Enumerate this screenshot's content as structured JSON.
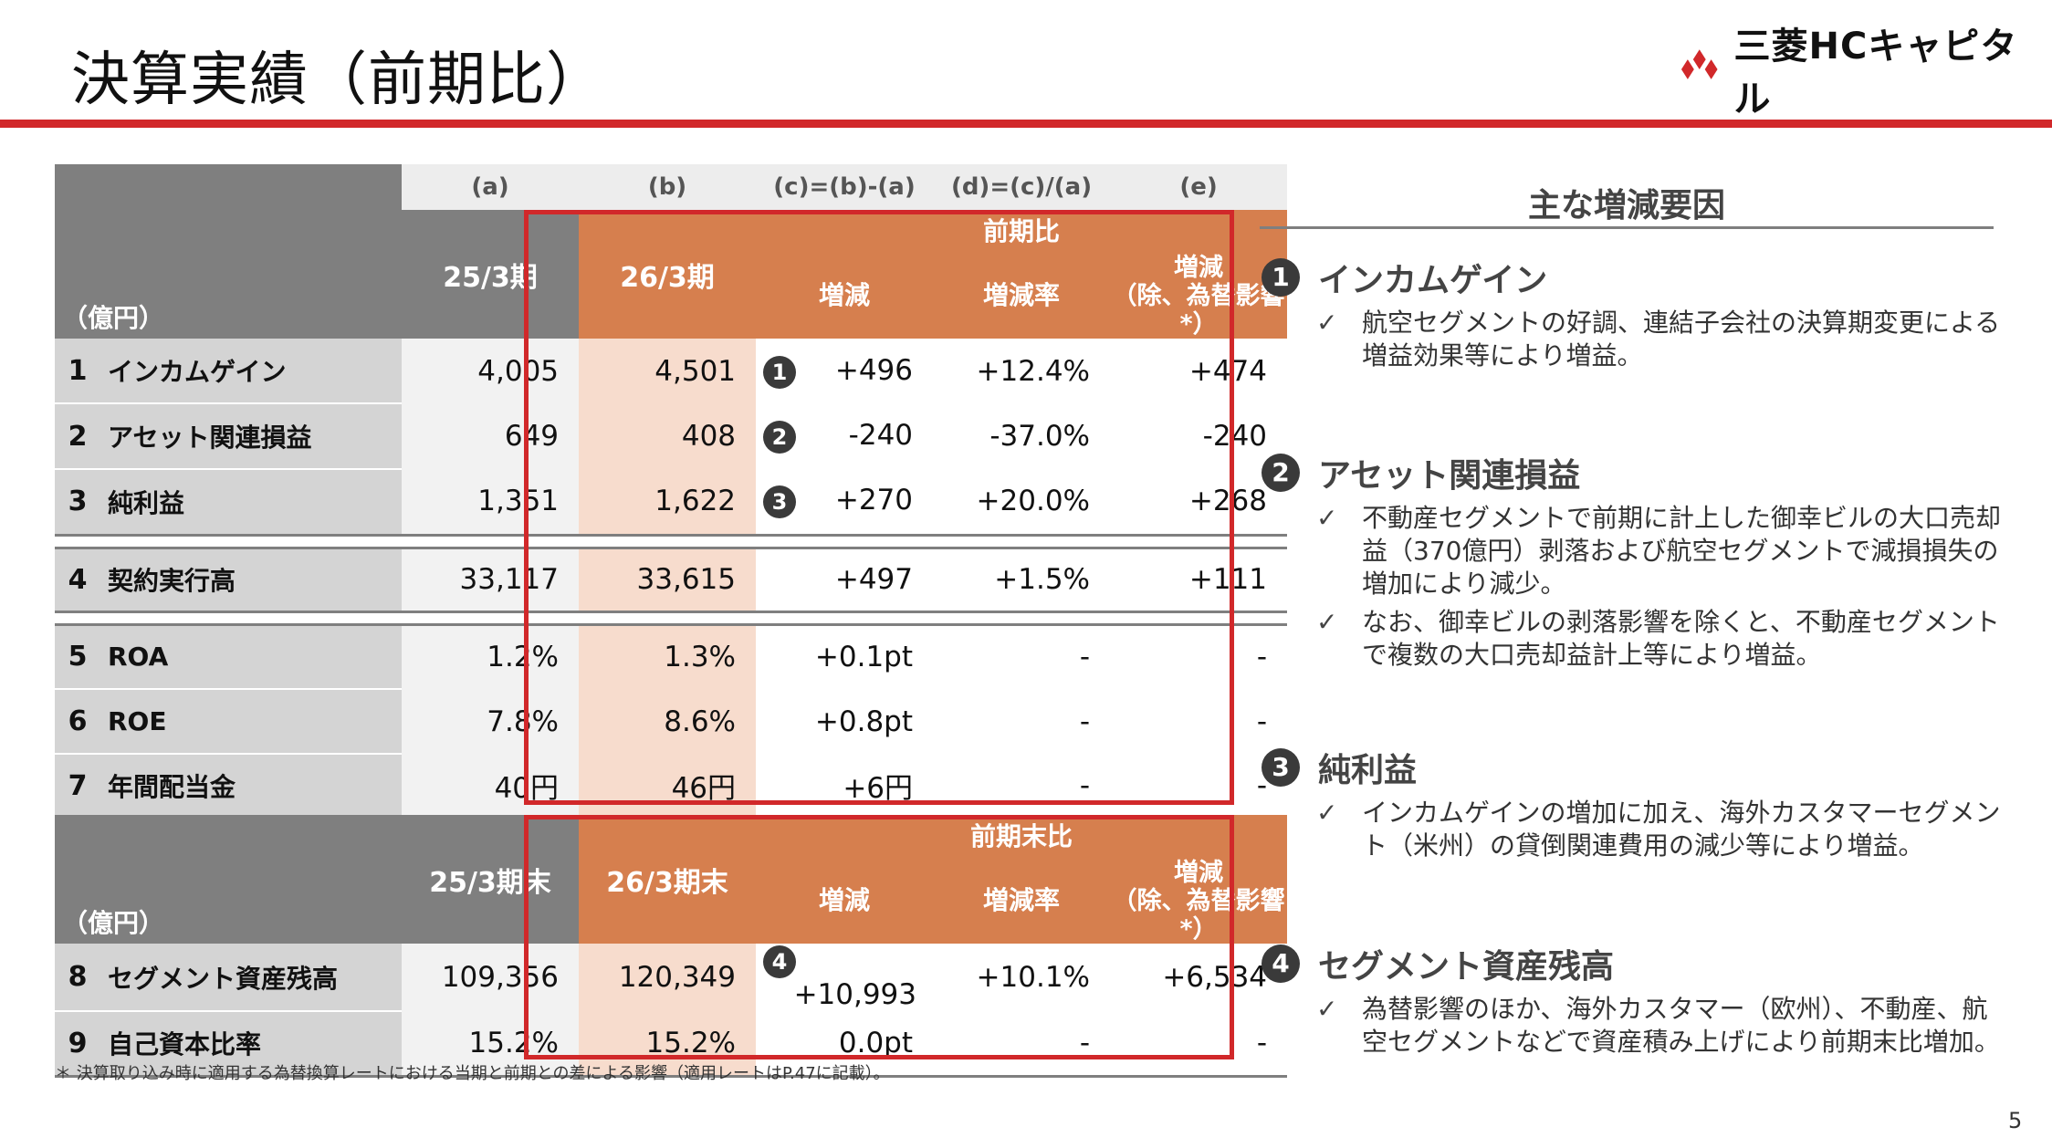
{
  "title": "決算実績（前期比）",
  "logo": {
    "text": "三菱HCキャピタル"
  },
  "table1": {
    "col_codes": [
      "(a)",
      "(b)",
      "(c)=(b)-(a)",
      "(d)=(c)/(a)",
      "(e)"
    ],
    "unit": "（億円）",
    "col_a": "25/3期",
    "col_b": "26/3期",
    "group": "前期比",
    "sub_c": "増減",
    "sub_d": "増減率",
    "sub_e_1": "増減",
    "sub_e_2": "（除、為替影響*）",
    "rows": [
      {
        "no": "1",
        "label": "インカムゲイン",
        "a": "4,005",
        "b": "4,501",
        "mark": "1",
        "c": "+496",
        "d": "+12.4%",
        "e": "+474"
      },
      {
        "no": "2",
        "label": "アセット関連損益",
        "a": "649",
        "b": "408",
        "mark": "2",
        "c": "-240",
        "d": "-37.0%",
        "e": "-240"
      },
      {
        "no": "3",
        "label": "純利益",
        "a": "1,351",
        "b": "1,622",
        "mark": "3",
        "c": "+270",
        "d": "+20.0%",
        "e": "+268"
      },
      {
        "no": "4",
        "label": "契約実行高",
        "a": "33,117",
        "b": "33,615",
        "mark": "",
        "c": "+497",
        "d": "+1.5%",
        "e": "+111"
      },
      {
        "no": "5",
        "label": "ROA",
        "a": "1.2%",
        "b": "1.3%",
        "mark": "",
        "c": "+0.1pt",
        "d": "-",
        "e": "-"
      },
      {
        "no": "6",
        "label": "ROE",
        "a": "7.8%",
        "b": "8.6%",
        "mark": "",
        "c": "+0.8pt",
        "d": "-",
        "e": "-"
      },
      {
        "no": "7",
        "label": "年間配当金",
        "a": "40円",
        "b": "46円",
        "mark": "",
        "c": "+6円",
        "d": "-",
        "e": "-"
      }
    ]
  },
  "table2": {
    "unit": "（億円）",
    "col_a": "25/3期末",
    "col_b": "26/3期末",
    "group": "前期末比",
    "sub_c": "増減",
    "sub_d": "増減率",
    "sub_e_1": "増減",
    "sub_e_2": "（除、為替影響*）",
    "rows": [
      {
        "no": "8",
        "label": "セグメント資産残高",
        "a": "109,356",
        "b": "120,349",
        "mark": "4",
        "c": "+10,993",
        "d": "+10.1%",
        "e": "+6,534"
      },
      {
        "no": "9",
        "label": "自己資本比率",
        "a": "15.2%",
        "b": "15.2%",
        "mark": "",
        "c": "0.0pt",
        "d": "-",
        "e": "-"
      }
    ]
  },
  "footnote": "＊ 決算取り込み時に適用する為替換算レートにおける当期と前期との差による影響（適用レートはP.47に記載）。",
  "page_number": "5",
  "factors": {
    "title": "主な増減要因",
    "check": "✓",
    "items": [
      {
        "num": "1",
        "heading": "インカムゲイン",
        "bullets": [
          "航空セグメントの好調、連結子会社の決算期変更による増益効果等により増益。"
        ]
      },
      {
        "num": "2",
        "heading": "アセット関連損益",
        "bullets": [
          "不動産セグメントで前期に計上した御幸ビルの大口売却益（370億円）剥落および航空セグメントで減損損失の増加により減少。",
          "なお、御幸ビルの剥落影響を除くと、不動産セグメントで複数の大口売却益計上等により増益。"
        ]
      },
      {
        "num": "3",
        "heading": "純利益",
        "bullets": [
          "インカムゲインの増加に加え、海外カスタマーセグメント（米州）の貸倒関連費用の減少等により増益。"
        ]
      },
      {
        "num": "4",
        "heading": "セグメント資産残高",
        "bullets": [
          "為替影響のほか、海外カスタマー（欧州）、不動産、航空セグメントなどで資産積み上げにより前期末比増加。"
        ]
      }
    ]
  }
}
